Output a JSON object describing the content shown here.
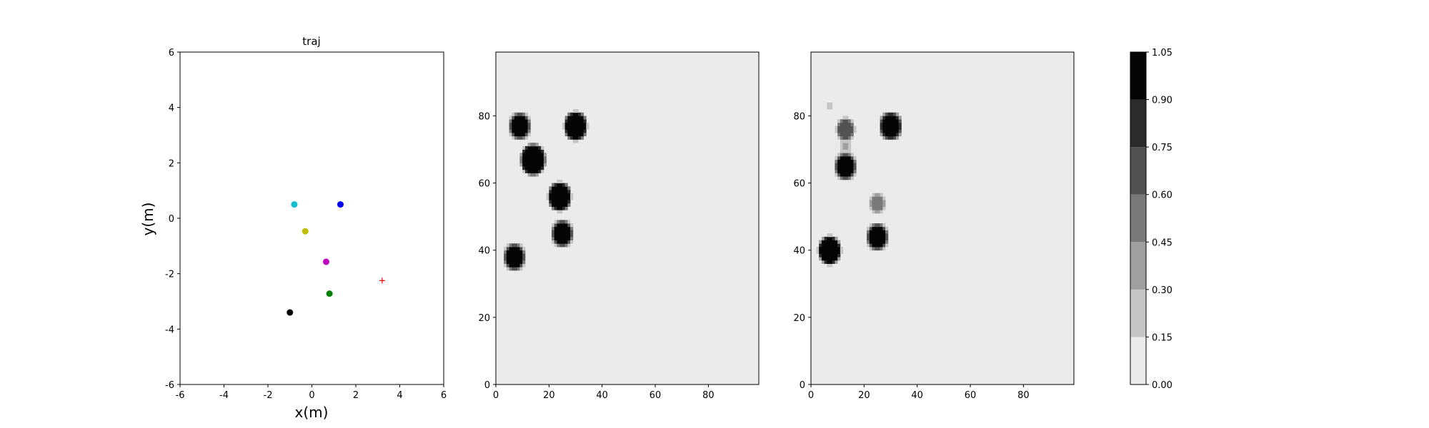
{
  "figure": {
    "background": "#ffffff"
  },
  "chart_data": [
    {
      "type": "scatter",
      "title": "traj",
      "xlabel": "x(m)",
      "ylabel": "y(m)",
      "xlim": [
        -6,
        6
      ],
      "ylim": [
        -6,
        6
      ],
      "xticks": [
        -6,
        -4,
        -2,
        0,
        2,
        4,
        6
      ],
      "yticks": [
        -6,
        -4,
        -2,
        0,
        2,
        4,
        6
      ],
      "grid": false,
      "points": [
        {
          "x": -0.8,
          "y": 0.5,
          "color": "#17becf",
          "marker": "circle"
        },
        {
          "x": 1.3,
          "y": 0.5,
          "color": "#0000ff",
          "marker": "circle"
        },
        {
          "x": -0.3,
          "y": -0.47,
          "color": "#bfbf00",
          "marker": "circle"
        },
        {
          "x": 0.65,
          "y": -1.57,
          "color": "#bf00bf",
          "marker": "circle"
        },
        {
          "x": 0.8,
          "y": -2.72,
          "color": "#008000",
          "marker": "circle"
        },
        {
          "x": -1.0,
          "y": -3.4,
          "color": "#000000",
          "marker": "circle"
        },
        {
          "x": 3.2,
          "y": -2.25,
          "color": "#ff0000",
          "marker": "plus"
        }
      ]
    },
    {
      "type": "heatmap",
      "title": "",
      "xlim": [
        0,
        99
      ],
      "ylim": [
        0,
        99
      ],
      "xticks": [
        0,
        20,
        40,
        60,
        80
      ],
      "yticks": [
        0,
        20,
        40,
        60,
        80
      ],
      "background_value": 0.0,
      "blobs": [
        {
          "x": 9,
          "y": 77,
          "r": 3.2,
          "value": 1.0
        },
        {
          "x": 30,
          "y": 77,
          "r": 3.6,
          "value": 1.0
        },
        {
          "x": 14,
          "y": 67,
          "r": 4.0,
          "value": 1.0
        },
        {
          "x": 24,
          "y": 56,
          "r": 3.6,
          "value": 1.0
        },
        {
          "x": 25,
          "y": 45,
          "r": 3.2,
          "value": 1.0
        },
        {
          "x": 7,
          "y": 38,
          "r": 3.2,
          "value": 1.0
        }
      ]
    },
    {
      "type": "heatmap",
      "title": "",
      "xlim": [
        0,
        99
      ],
      "ylim": [
        0,
        99
      ],
      "xticks": [
        0,
        20,
        40,
        60,
        80
      ],
      "yticks": [
        0,
        20,
        40,
        60,
        80
      ],
      "background_value": 0.0,
      "blobs": [
        {
          "x": 30,
          "y": 77,
          "r": 3.4,
          "value": 1.0
        },
        {
          "x": 13,
          "y": 76,
          "r": 2.6,
          "value": 0.6
        },
        {
          "x": 13,
          "y": 71,
          "r": 1.5,
          "value": 0.3
        },
        {
          "x": 13,
          "y": 65,
          "r": 3.2,
          "value": 1.0
        },
        {
          "x": 25,
          "y": 54,
          "r": 2.2,
          "value": 0.5
        },
        {
          "x": 25,
          "y": 44,
          "r": 3.2,
          "value": 1.0
        },
        {
          "x": 7,
          "y": 40,
          "r": 3.5,
          "value": 1.0
        },
        {
          "x": 7,
          "y": 83,
          "r": 0.6,
          "value": 0.3
        }
      ]
    }
  ],
  "colorbar": {
    "levels": [
      0.0,
      0.15,
      0.3,
      0.45,
      0.6,
      0.75,
      0.9,
      1.05
    ],
    "ticklabels": [
      "0.00",
      "0.15",
      "0.30",
      "0.45",
      "0.60",
      "0.75",
      "0.90",
      "1.05"
    ],
    "colors": [
      "#ebebeb",
      "#c6c6c6",
      "#9f9f9f",
      "#797979",
      "#525252",
      "#2b2b2b",
      "#050505"
    ]
  }
}
